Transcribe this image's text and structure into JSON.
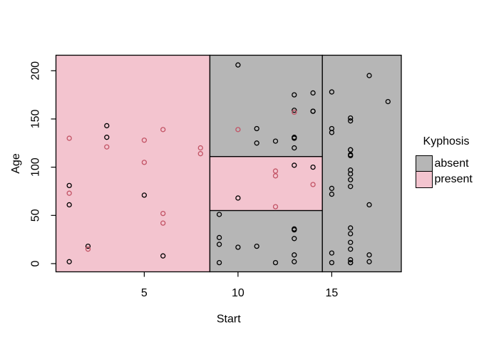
{
  "chart_data": {
    "type": "scatter",
    "xlabel": "Start",
    "ylabel": "Age",
    "xlim": [
      0.29,
      18.71
    ],
    "ylim": [
      -8.5,
      216.1
    ],
    "x_ticks": [
      5,
      10,
      15
    ],
    "y_ticks": [
      0,
      50,
      100,
      150,
      200
    ],
    "grid": false,
    "legend": {
      "title": "Kyphosis",
      "position": "right",
      "entries": [
        {
          "label": "absent",
          "color": "#b6b6b6"
        },
        {
          "label": "present",
          "color": "#f3c4cf"
        }
      ]
    },
    "point_colors": {
      "absent": "#000000",
      "present": "#c25365"
    },
    "region_note": "decision-tree partitions: splits at Start=8.5, Start=14.5, Age=55, Age=111",
    "regions": [
      {
        "x": [
          0.29,
          8.5
        ],
        "y": [
          -8.5,
          216.1
        ],
        "class": "present"
      },
      {
        "x": [
          8.5,
          14.5
        ],
        "y": [
          111,
          216.1
        ],
        "class": "absent"
      },
      {
        "x": [
          8.5,
          14.5
        ],
        "y": [
          55,
          111
        ],
        "class": "present"
      },
      {
        "x": [
          8.5,
          14.5
        ],
        "y": [
          -8.5,
          55
        ],
        "class": "absent"
      },
      {
        "x": [
          14.5,
          18.71
        ],
        "y": [
          -8.5,
          216.1
        ],
        "class": "absent"
      }
    ],
    "series_columns": [
      "Start",
      "Age",
      "Kyphosis"
    ],
    "points": [
      [
        5,
        71,
        "absent"
      ],
      [
        14,
        158,
        "absent"
      ],
      [
        5,
        128,
        "present"
      ],
      [
        1,
        2,
        "absent"
      ],
      [
        15,
        1,
        "absent"
      ],
      [
        16,
        1,
        "absent"
      ],
      [
        17,
        61,
        "absent"
      ],
      [
        16,
        37,
        "absent"
      ],
      [
        16,
        113,
        "absent"
      ],
      [
        12,
        59,
        "present"
      ],
      [
        14,
        82,
        "present"
      ],
      [
        16,
        148,
        "absent"
      ],
      [
        2,
        18,
        "absent"
      ],
      [
        12,
        1,
        "absent"
      ],
      [
        18,
        168,
        "absent"
      ],
      [
        16,
        1,
        "absent"
      ],
      [
        15,
        78,
        "absent"
      ],
      [
        13,
        175,
        "absent"
      ],
      [
        16,
        80,
        "absent"
      ],
      [
        9,
        27,
        "absent"
      ],
      [
        16,
        22,
        "absent"
      ],
      [
        5,
        105,
        "present"
      ],
      [
        12,
        96,
        "present"
      ],
      [
        3,
        131,
        "absent"
      ],
      [
        2,
        15,
        "present"
      ],
      [
        13,
        9,
        "absent"
      ],
      [
        6,
        8,
        "absent"
      ],
      [
        14,
        100,
        "absent"
      ],
      [
        16,
        4,
        "absent"
      ],
      [
        16,
        151,
        "absent"
      ],
      [
        16,
        31,
        "absent"
      ],
      [
        11,
        125,
        "absent"
      ],
      [
        13,
        130,
        "absent"
      ],
      [
        16,
        112,
        "absent"
      ],
      [
        11,
        140,
        "absent"
      ],
      [
        16,
        93,
        "absent"
      ],
      [
        9,
        1,
        "absent"
      ],
      [
        6,
        52,
        "present"
      ],
      [
        9,
        20,
        "absent"
      ],
      [
        12,
        91,
        "present"
      ],
      [
        1,
        73,
        "present"
      ],
      [
        13,
        35,
        "absent"
      ],
      [
        3,
        143,
        "absent"
      ],
      [
        1,
        61,
        "absent"
      ],
      [
        16,
        97,
        "absent"
      ],
      [
        10,
        139,
        "present"
      ],
      [
        15,
        136,
        "absent"
      ],
      [
        13,
        131,
        "absent"
      ],
      [
        3,
        121,
        "present"
      ],
      [
        14,
        177,
        "absent"
      ],
      [
        10,
        68,
        "absent"
      ],
      [
        17,
        9,
        "absent"
      ],
      [
        6,
        139,
        "present"
      ],
      [
        17,
        2,
        "absent"
      ],
      [
        15,
        140,
        "absent"
      ],
      [
        15,
        72,
        "absent"
      ],
      [
        13,
        2,
        "absent"
      ],
      [
        8,
        120,
        "present"
      ],
      [
        9,
        51,
        "absent"
      ],
      [
        13,
        102,
        "absent"
      ],
      [
        1,
        130,
        "present"
      ],
      [
        8,
        114,
        "present"
      ],
      [
        1,
        81,
        "absent"
      ],
      [
        16,
        118,
        "absent"
      ],
      [
        16,
        118,
        "absent"
      ],
      [
        10,
        17,
        "absent"
      ],
      [
        17,
        195,
        "absent"
      ],
      [
        13,
        159,
        "absent"
      ],
      [
        11,
        18,
        "absent"
      ],
      [
        16,
        15,
        "absent"
      ],
      [
        14,
        158,
        "absent"
      ],
      [
        12,
        127,
        "absent"
      ],
      [
        16,
        87,
        "absent"
      ],
      [
        10,
        206,
        "absent"
      ],
      [
        15,
        11,
        "absent"
      ],
      [
        15,
        178,
        "absent"
      ],
      [
        13,
        157,
        "present"
      ],
      [
        13,
        26,
        "absent"
      ],
      [
        13,
        120,
        "absent"
      ],
      [
        6,
        42,
        "present"
      ],
      [
        13,
        36,
        "absent"
      ]
    ]
  }
}
